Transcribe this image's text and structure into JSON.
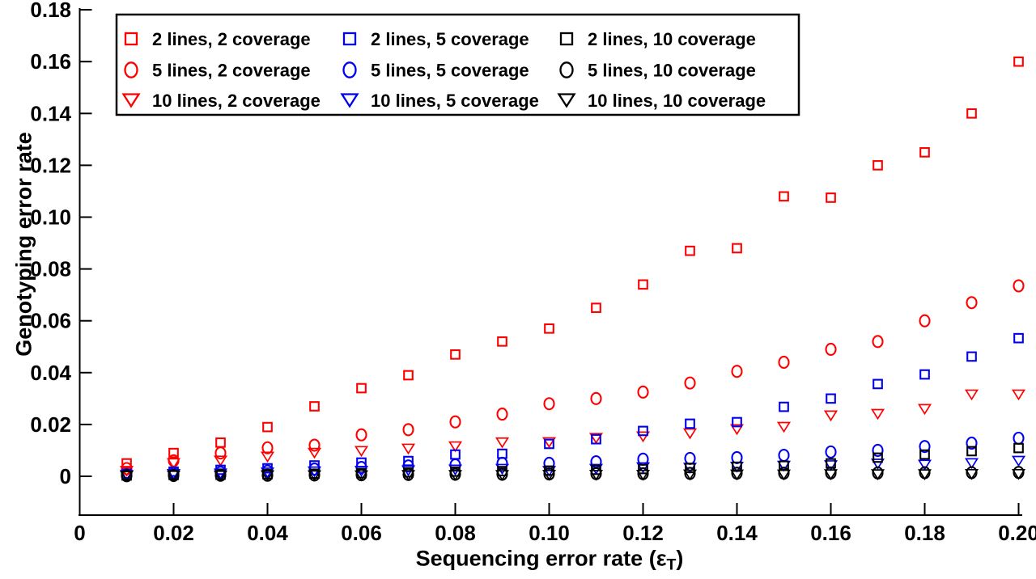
{
  "figure": {
    "ylabel": "Genotyping error rate",
    "xlabel_prefix": "Sequencing error rate (",
    "xlabel_epsilon": "ε",
    "xlabel_subscript": "T",
    "xlabel_suffix": ")"
  },
  "colors": {
    "coverage2": "#ff0000",
    "coverage5": "#0000ee",
    "coverage10": "#000000",
    "axis": "#000000",
    "background": "#ffffff"
  },
  "legend": {
    "position": "top-center",
    "columns": [
      {
        "entries": [
          {
            "marker": "square",
            "color": "#ff0000",
            "label": "2 lines, 2 coverage"
          },
          {
            "marker": "circle",
            "color": "#ff0000",
            "label": "5 lines, 2 coverage"
          },
          {
            "marker": "triangle",
            "color": "#ff0000",
            "label": "10 lines, 2 coverage"
          }
        ]
      },
      {
        "entries": [
          {
            "marker": "square",
            "color": "#0000ee",
            "label": "2 lines, 5 coverage"
          },
          {
            "marker": "circle",
            "color": "#0000ee",
            "label": "5 lines, 5 coverage"
          },
          {
            "marker": "triangle",
            "color": "#0000ee",
            "label": "10 lines, 5 coverage"
          }
        ]
      },
      {
        "entries": [
          {
            "marker": "square",
            "color": "#000000",
            "label": "2 lines, 10 coverage"
          },
          {
            "marker": "circle",
            "color": "#000000",
            "label": "5 lines, 10 coverage"
          },
          {
            "marker": "triangle",
            "color": "#000000",
            "label": "10 lines, 10 coverage"
          }
        ]
      }
    ]
  },
  "chart_data": {
    "type": "scatter",
    "title": "",
    "xlabel": "Sequencing error rate (ε_T)",
    "ylabel": "Genotyping error rate",
    "xlim": [
      0,
      0.202
    ],
    "ylim": [
      -0.015,
      0.18
    ],
    "grid": false,
    "legend_position": "top-center",
    "xticks": [
      0,
      0.02,
      0.04,
      0.06,
      0.08,
      0.1,
      0.12,
      0.14,
      0.16,
      0.18,
      0.2
    ],
    "xtick_labels": [
      "0",
      "0.02",
      "0.04",
      "0.06",
      "0.08",
      "0.10",
      "0.12",
      "0.14",
      "0.16",
      "0.18",
      "0.20"
    ],
    "yticks": [
      0,
      0.02,
      0.04,
      0.06,
      0.08,
      0.1,
      0.12,
      0.14,
      0.16,
      0.18
    ],
    "ytick_labels": [
      "0",
      "0.02",
      "0.04",
      "0.06",
      "0.08",
      "0.10",
      "0.12",
      "0.14",
      "0.16",
      "0.18"
    ],
    "x": [
      0.01,
      0.02,
      0.03,
      0.04,
      0.05,
      0.06,
      0.07,
      0.08,
      0.09,
      0.1,
      0.11,
      0.12,
      0.13,
      0.14,
      0.15,
      0.16,
      0.17,
      0.18,
      0.19,
      0.2
    ],
    "series": [
      {
        "name": "2 lines, 2 coverage",
        "marker": "square",
        "color": "#ff0000",
        "values": [
          0.005,
          0.009,
          0.013,
          0.019,
          0.027,
          0.034,
          0.039,
          0.047,
          0.052,
          0.057,
          0.065,
          0.074,
          0.087,
          0.088,
          0.108,
          0.1075,
          0.12,
          0.125,
          0.14,
          0.16
        ]
      },
      {
        "name": "5 lines, 2 coverage",
        "marker": "circle",
        "color": "#ff0000",
        "values": [
          0.003,
          0.006,
          0.009,
          0.011,
          0.012,
          0.016,
          0.018,
          0.021,
          0.024,
          0.028,
          0.03,
          0.0325,
          0.036,
          0.0405,
          0.044,
          0.049,
          0.052,
          0.06,
          0.067,
          0.0735
        ]
      },
      {
        "name": "10 lines, 2 coverage",
        "marker": "triangle",
        "color": "#ff0000",
        "values": [
          0.002,
          0.005,
          0.006,
          0.0075,
          0.009,
          0.0097,
          0.0106,
          0.0115,
          0.013,
          0.0131,
          0.0147,
          0.0153,
          0.0165,
          0.0181,
          0.019,
          0.0234,
          0.024,
          0.0259,
          0.0315,
          0.0315
        ]
      },
      {
        "name": "2 lines, 5 coverage",
        "marker": "square",
        "color": "#0000ee",
        "values": [
          0.001,
          0.0018,
          0.0025,
          0.0031,
          0.0042,
          0.0053,
          0.0059,
          0.0084,
          0.0087,
          0.0125,
          0.0143,
          0.0175,
          0.0203,
          0.0209,
          0.0268,
          0.03,
          0.0356,
          0.0393,
          0.0462,
          0.0533
        ]
      },
      {
        "name": "5 lines, 5 coverage",
        "marker": "circle",
        "color": "#0000ee",
        "values": [
          0.0006,
          0.001,
          0.0015,
          0.002,
          0.0028,
          0.0034,
          0.004,
          0.0044,
          0.005,
          0.005,
          0.0056,
          0.0066,
          0.0069,
          0.0072,
          0.0081,
          0.0094,
          0.01,
          0.0115,
          0.0128,
          0.0147
        ]
      },
      {
        "name": "10 lines, 5 coverage",
        "marker": "triangle",
        "color": "#0000ee",
        "values": [
          0.0004,
          0.0008,
          0.001,
          0.0014,
          0.0018,
          0.002,
          0.0022,
          0.0025,
          0.0028,
          0.002,
          0.0028,
          0.0034,
          0.0032,
          0.0036,
          0.004,
          0.0042,
          0.0048,
          0.0044,
          0.005,
          0.0059
        ]
      },
      {
        "name": "2 lines, 10 coverage",
        "marker": "square",
        "color": "#000000",
        "values": [
          0.0003,
          0.0005,
          0.0006,
          0.0008,
          0.001,
          0.0012,
          0.0015,
          0.0018,
          0.002,
          0.0022,
          0.0025,
          0.0028,
          0.0032,
          0.0037,
          0.0041,
          0.005,
          0.0072,
          0.0084,
          0.0097,
          0.0109
        ]
      },
      {
        "name": "5 lines, 10 coverage",
        "marker": "circle",
        "color": "#000000",
        "values": [
          0.0002,
          0.0003,
          0.0004,
          0.0004,
          0.0005,
          0.0006,
          0.0007,
          0.0008,
          0.0008,
          0.0009,
          0.001,
          0.001,
          0.0011,
          0.0012,
          0.0012,
          0.0013,
          0.0013,
          0.0014,
          0.0014,
          0.0015
        ]
      },
      {
        "name": "10 lines, 10 coverage",
        "marker": "triangle",
        "color": "#000000",
        "values": [
          0.0001,
          0.0002,
          0.0002,
          0.0003,
          0.0003,
          0.0003,
          0.0004,
          0.0004,
          0.0004,
          0.0005,
          0.0005,
          0.0005,
          0.0006,
          0.0006,
          0.0006,
          0.0007,
          0.0007,
          0.0007,
          0.0008,
          0.0008
        ]
      }
    ]
  }
}
